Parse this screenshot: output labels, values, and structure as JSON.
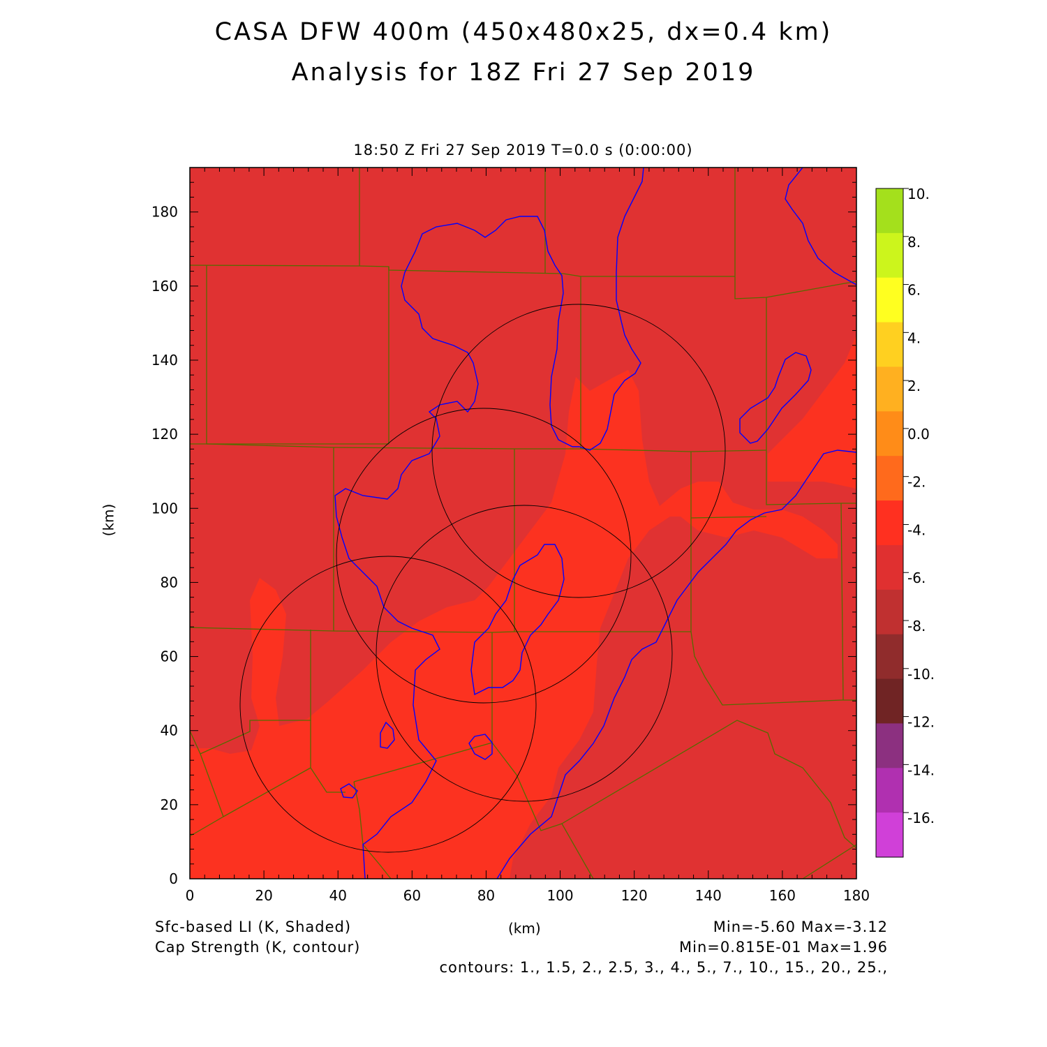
{
  "title_line1": "CASA DFW 400m (450x480x25, dx=0.4 km)",
  "title_line2": "Analysis for 18Z Fri 27 Sep 2019",
  "time_label": "18:50 Z Fri 27 Sep 2019    T=0.0 s (0:00:00)",
  "axes": {
    "x_units": "(km)",
    "y_units": "(km)",
    "x_ticks": [
      "0",
      "20",
      "40",
      "60",
      "80",
      "100",
      "120",
      "140",
      "160",
      "180"
    ],
    "y_ticks": [
      "0",
      "20",
      "40",
      "60",
      "80",
      "100",
      "120",
      "140",
      "160",
      "180"
    ],
    "x_range": [
      0,
      180
    ],
    "y_range": [
      0,
      192
    ]
  },
  "colorbar": {
    "labels": [
      "10.",
      "8.",
      "6.",
      "4.",
      "2.",
      "0.0",
      "-2.",
      "-4.",
      "-6.",
      "-8.",
      "-10.",
      "-12.",
      "-14.",
      "-16."
    ],
    "colors": [
      "#a4e01c",
      "#ccf51c",
      "#ffff20",
      "#ffd020",
      "#ffb020",
      "#ff8c18",
      "#ff6a1c",
      "#ff3020",
      "#e03030",
      "#c03030",
      "#902c2c",
      "#702424",
      "#8c3080",
      "#b030b0",
      "#d040d8"
    ]
  },
  "map": {
    "background_color": "#e03232",
    "warm_region_color": "#fc3220",
    "county_line_color": "#556b00",
    "river_color": "#0000ff",
    "range_ring_color": "#000000"
  },
  "footer": {
    "shaded_field": "Sfc-based LI (K, Shaded)",
    "contour_field": "Cap Strength (K, contour)",
    "shaded_range": "Min=-5.60 Max=-3.12",
    "contour_range": "Min=0.815E-01 Max=1.96",
    "contours": "contours: 1., 1.5, 2., 2.5, 3., 4., 5., 7., 10., 15., 20., 25.,"
  }
}
